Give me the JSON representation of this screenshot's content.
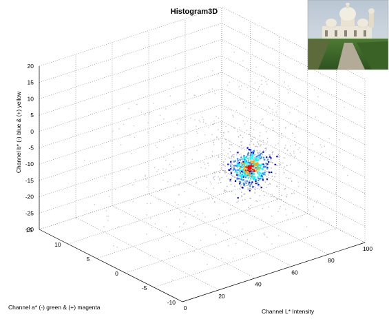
{
  "chart_data": {
    "type": "scatter",
    "title": "Histogram3D",
    "x_axis": {
      "label": "Channel L*  Intensity",
      "ticks": [
        0,
        20,
        40,
        60,
        80,
        100
      ],
      "range": [
        0,
        100
      ]
    },
    "y_axis": {
      "label": "Channel a*  (-) green & (+) magenta",
      "ticks": [
        -10,
        -5,
        0,
        5,
        10,
        15
      ],
      "range": [
        -10,
        15
      ]
    },
    "z_axis": {
      "label": "Channel b*  (-) blue & (+) yellow",
      "ticks": [
        -30,
        -25,
        -20,
        -15,
        -10,
        -5,
        0,
        5,
        10,
        15,
        20
      ],
      "range": [
        -30,
        20
      ]
    },
    "grid": true,
    "inset_image": "photo of a white domed basilica on a hill with lawn and path",
    "dense_cluster": {
      "L_range": [
        55,
        80
      ],
      "a_range": [
        -3,
        3
      ],
      "b_range": [
        -18,
        -3
      ],
      "peak": {
        "L": 68,
        "a": 0,
        "b": -10
      }
    },
    "sparse_spread": {
      "L_range": [
        0,
        100
      ],
      "a_range": [
        -8,
        12
      ],
      "b_range": [
        -28,
        12
      ]
    },
    "colors": {
      "low": "#0000ff",
      "mid": "#00ffff",
      "high": "#ff0000",
      "sparse": "#c8c8d8",
      "sky": "#cfd8e2",
      "grass": "#3e6a2a",
      "stone": "#ece6d8"
    }
  }
}
